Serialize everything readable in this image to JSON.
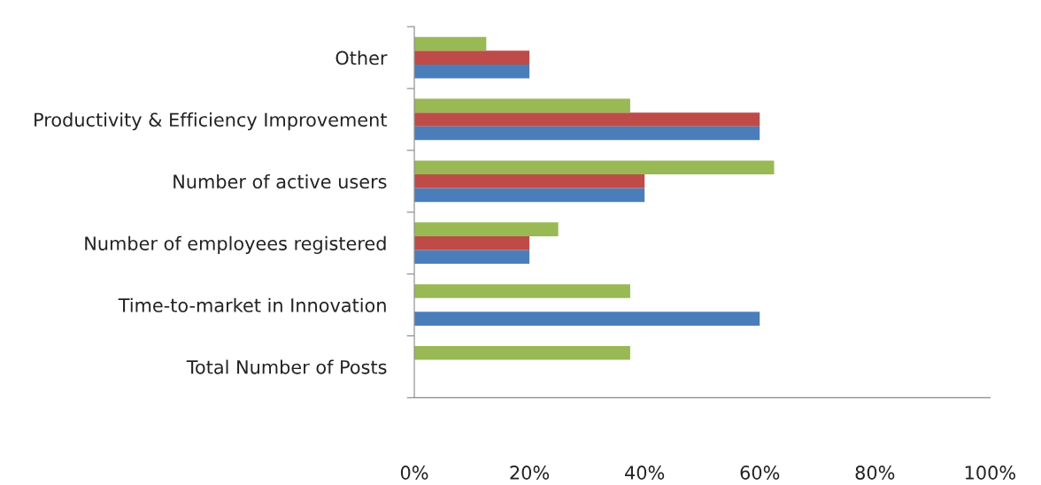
{
  "chart_data": {
    "type": "bar",
    "orientation": "horizontal",
    "categories": [
      "Other",
      "Productivity & Efficiency Improvement",
      "Number of active users",
      "Number of employees registered",
      "Time-to-market in Innovation",
      "Total Number of Posts"
    ],
    "series": [
      {
        "color": "#4a7ebb",
        "values": [
          20,
          60,
          40,
          20,
          60,
          0
        ]
      },
      {
        "color": "#be4b48",
        "values": [
          20,
          60,
          40,
          20,
          0,
          0
        ]
      },
      {
        "color": "#98b954",
        "values": [
          12.5,
          37.5,
          62.5,
          25,
          37.5,
          37.5
        ]
      }
    ],
    "xlim": [
      0,
      100
    ],
    "xticks": [
      {
        "value": 0,
        "label": "0%"
      },
      {
        "value": 20,
        "label": "20%"
      },
      {
        "value": 40,
        "label": "40%"
      },
      {
        "value": 60,
        "label": "60%"
      },
      {
        "value": 80,
        "label": "80%"
      },
      {
        "value": 100,
        "label": "100%"
      }
    ],
    "grid": false,
    "legend": false
  }
}
